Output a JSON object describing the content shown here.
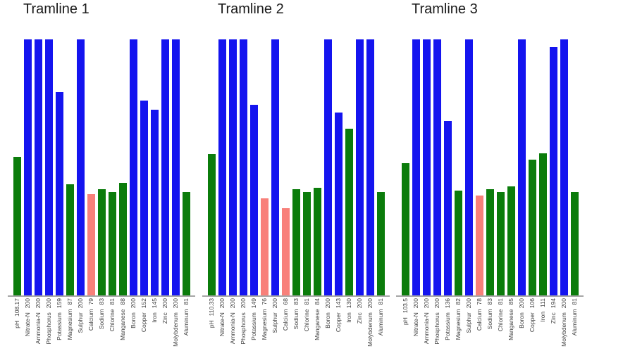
{
  "page": {
    "background": "#ffffff"
  },
  "colors": {
    "status": {
      "high": "#1414ef",
      "ok": "#0b7c0b",
      "low": "#f8807a"
    },
    "axis_line": "#a6a6a6",
    "label_text": "#3d3d3d",
    "title_text": "#1a1a1a"
  },
  "chart_data": [
    {
      "type": "bar",
      "title": "Tramline 1",
      "xlabel": "",
      "ylabel": "",
      "ylim": [
        0,
        200
      ],
      "grid": false,
      "legend": "none",
      "categories": [
        "pH",
        "Nitrate-N",
        "Ammonia-N",
        "Phosphorus",
        "Potassium",
        "Magnesium",
        "Sulphur",
        "Calcium",
        "Sodium",
        "Chlorine",
        "Manganese",
        "Boron",
        "Copper",
        "Iron",
        "Zinc",
        "Molybdenum",
        "Aluminum"
      ],
      "values": [
        108.17,
        200,
        200,
        200,
        159,
        87,
        200,
        79,
        83,
        81,
        88,
        200,
        152,
        145,
        200,
        200,
        81
      ],
      "statuses": [
        "ok",
        "high",
        "high",
        "high",
        "high",
        "ok",
        "high",
        "low",
        "ok",
        "ok",
        "ok",
        "high",
        "high",
        "high",
        "high",
        "high",
        "ok"
      ]
    },
    {
      "type": "bar",
      "title": "Tramline 2",
      "xlabel": "",
      "ylabel": "",
      "ylim": [
        0,
        200
      ],
      "grid": false,
      "legend": "none",
      "categories": [
        "pH",
        "Nitrate-N",
        "Ammonia-N",
        "Phosphorus",
        "Potassium",
        "Magnesium",
        "Sulphur",
        "Calcium",
        "Sodium",
        "Chlorine",
        "Manganese",
        "Boron",
        "Copper",
        "Iron",
        "Zinc",
        "Molybdenum",
        "Aluminum"
      ],
      "values": [
        110.33,
        200,
        200,
        200,
        149,
        76,
        200,
        68,
        83,
        81,
        84,
        200,
        143,
        130,
        200,
        200,
        81
      ],
      "statuses": [
        "ok",
        "high",
        "high",
        "high",
        "high",
        "low",
        "high",
        "low",
        "ok",
        "ok",
        "ok",
        "high",
        "high",
        "ok",
        "high",
        "high",
        "ok"
      ]
    },
    {
      "type": "bar",
      "title": "Tramline 3",
      "xlabel": "",
      "ylabel": "",
      "ylim": [
        0,
        200
      ],
      "grid": false,
      "legend": "none",
      "categories": [
        "pH",
        "Nitrate-N",
        "Ammonia-N",
        "Phosphorus",
        "Potassium",
        "Magnesium",
        "Sulphur",
        "Calcium",
        "Sodium",
        "Chlorine",
        "Manganese",
        "Boron",
        "Copper",
        "Iron",
        "Zinc",
        "Molybdenum",
        "Aluminum"
      ],
      "values": [
        103.5,
        200,
        200,
        200,
        136,
        82,
        200,
        78,
        83,
        81,
        85,
        200,
        106,
        111,
        194,
        200,
        81
      ],
      "statuses": [
        "ok",
        "high",
        "high",
        "high",
        "high",
        "ok",
        "high",
        "low",
        "ok",
        "ok",
        "ok",
        "high",
        "ok",
        "ok",
        "high",
        "high",
        "ok"
      ]
    }
  ]
}
